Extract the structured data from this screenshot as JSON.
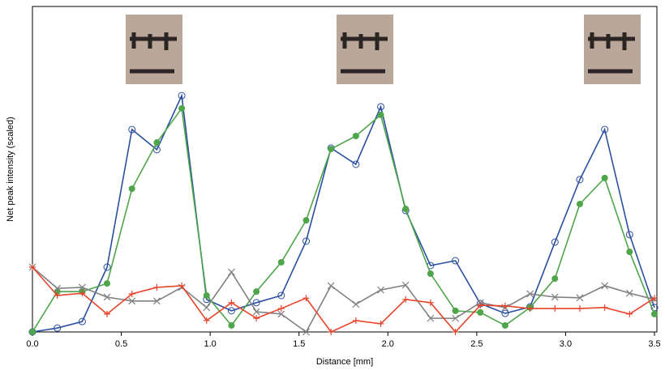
{
  "chart_data": {
    "type": "line",
    "xlabel": "Distance [mm]",
    "ylabel": "Net peak intensity (scaled)",
    "x": [
      0,
      0.14,
      0.28,
      0.42,
      0.56,
      0.7,
      0.84,
      0.98,
      1.12,
      1.26,
      1.4,
      1.54,
      1.68,
      1.82,
      1.96,
      2.1,
      2.24,
      2.38,
      2.52,
      2.66,
      2.8,
      2.94,
      3.08,
      3.22,
      3.36,
      3.5
    ],
    "xlim": [
      0,
      3.5
    ],
    "xticks": [
      {
        "value": 0,
        "label": "0.0"
      },
      0.5,
      {
        "value": 1,
        "label": "1.0"
      },
      1.5,
      {
        "value": 2,
        "label": "2.0"
      },
      2.5,
      {
        "value": 3,
        "label": "3.0"
      },
      3.5
    ],
    "ylim": [
      0,
      1
    ],
    "series": [
      {
        "color": "#2a4fa0",
        "marker": "open-circle",
        "values": [
          0,
          0.012,
          0.032,
          0.199,
          0.622,
          0.56,
          0.726,
          0.1,
          0.065,
          0.09,
          0.112,
          0.279,
          0.565,
          0.515,
          0.692,
          0.373,
          0.204,
          0.219,
          0.087,
          0.057,
          0.077,
          0.276,
          0.468,
          0.622,
          0.299,
          0.075
        ]
      },
      {
        "color": "#4ea54a",
        "marker": "filled-circle",
        "values": [
          0,
          0.124,
          0.124,
          0.149,
          0.44,
          0.582,
          0.687,
          0.112,
          0.02,
          0.124,
          0.214,
          0.343,
          0.562,
          0.602,
          0.667,
          0.378,
          0.179,
          0.065,
          0.06,
          0.02,
          0.075,
          0.164,
          0.393,
          0.473,
          0.246,
          0.055
        ]
      },
      {
        "color": "#808080",
        "marker": "cross",
        "values": [
          0.199,
          0.134,
          0.137,
          0.107,
          0.095,
          0.095,
          0.137,
          0.075,
          0.184,
          0.062,
          0.055,
          0,
          0.142,
          0.085,
          0.129,
          0.144,
          0.042,
          0.042,
          0.09,
          0.075,
          0.117,
          0.107,
          0.105,
          0.142,
          0.119,
          0.1
        ]
      },
      {
        "color": "#e8432a",
        "marker": "plus",
        "values": [
          0.199,
          0.112,
          0.119,
          0.055,
          0.117,
          0.137,
          0.142,
          0.035,
          0.09,
          0.042,
          0.072,
          0.104,
          0,
          0.035,
          0.025,
          0.1,
          0.09,
          0,
          0.082,
          0.08,
          0.072,
          0.072,
          0.072,
          0.075,
          0.055,
          0.104
        ]
      }
    ]
  }
}
